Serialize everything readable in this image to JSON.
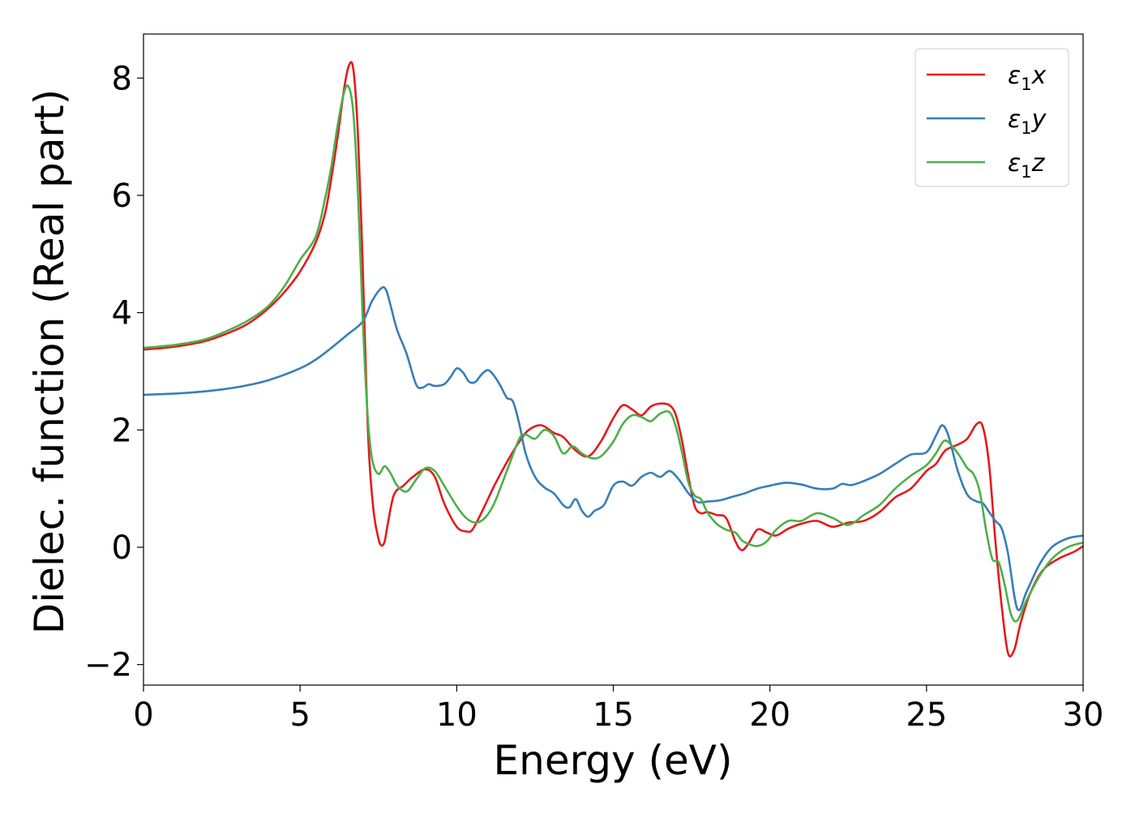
{
  "chart_data": {
    "type": "line",
    "title": "",
    "xlabel": "Energy (eV)",
    "ylabel": "Dielec. function (Real part)",
    "xlim": [
      0,
      30
    ],
    "ylim": [
      -2.35,
      8.75
    ],
    "xticks": [
      0,
      5,
      10,
      15,
      20,
      25,
      30
    ],
    "yticks": [
      -2,
      0,
      2,
      4,
      6,
      8
    ],
    "xtick_labels": [
      "0",
      "5",
      "10",
      "15",
      "20",
      "25",
      "30"
    ],
    "ytick_labels": [
      "−2",
      "0",
      "2",
      "4",
      "6",
      "8"
    ],
    "grid": false,
    "legend_position": "top-right",
    "series": [
      {
        "name": "ε₁x",
        "legend_main": "ε",
        "legend_sub": "1",
        "legend_tail": "x",
        "color": "#e41a1c",
        "x": [
          0,
          1,
          2,
          3,
          3.5,
          4,
          4.5,
          5,
          5.5,
          5.8,
          6.0,
          6.2,
          6.4,
          6.55,
          6.7,
          6.85,
          7.0,
          7.1,
          7.2,
          7.35,
          7.5,
          7.6,
          7.7,
          7.8,
          8.0,
          8.3,
          8.6,
          9.0,
          9.3,
          9.6,
          10.0,
          10.3,
          10.5,
          10.8,
          11.2,
          11.6,
          12.0,
          12.3,
          12.7,
          13.1,
          13.4,
          13.8,
          14.2,
          14.6,
          15.0,
          15.3,
          15.6,
          15.9,
          16.2,
          16.5,
          16.8,
          17.0,
          17.2,
          17.4,
          17.6,
          17.8,
          18.0,
          18.3,
          18.6,
          18.9,
          19.1,
          19.3,
          19.6,
          19.9,
          20.2,
          20.6,
          21.0,
          21.5,
          22.0,
          22.5,
          23.0,
          23.5,
          24.0,
          24.5,
          25.0,
          25.3,
          25.6,
          26.0,
          26.3,
          26.6,
          26.8,
          27.0,
          27.2,
          27.4,
          27.6,
          27.8,
          28.0,
          28.3,
          28.7,
          29.2,
          29.7,
          30.0
        ],
        "y": [
          3.37,
          3.42,
          3.52,
          3.72,
          3.87,
          4.08,
          4.35,
          4.7,
          5.2,
          5.7,
          6.3,
          7.0,
          7.8,
          8.2,
          8.15,
          7.0,
          4.8,
          3.0,
          1.6,
          0.6,
          0.15,
          0.03,
          0.1,
          0.4,
          0.9,
          1.05,
          1.2,
          1.33,
          1.2,
          0.75,
          0.35,
          0.27,
          0.3,
          0.6,
          1.05,
          1.45,
          1.8,
          2.0,
          2.08,
          1.95,
          1.88,
          1.65,
          1.55,
          1.8,
          2.2,
          2.42,
          2.35,
          2.25,
          2.4,
          2.45,
          2.42,
          2.25,
          1.8,
          1.2,
          0.7,
          0.58,
          0.6,
          0.55,
          0.5,
          0.1,
          -0.05,
          0.05,
          0.3,
          0.25,
          0.2,
          0.32,
          0.4,
          0.45,
          0.35,
          0.42,
          0.45,
          0.6,
          0.85,
          1.0,
          1.3,
          1.42,
          1.65,
          1.75,
          1.85,
          2.1,
          2.05,
          1.4,
          0.1,
          -1.0,
          -1.8,
          -1.75,
          -1.3,
          -0.8,
          -0.4,
          -0.2,
          -0.08,
          0.02
        ]
      },
      {
        "name": "ε₁y",
        "legend_main": "ε",
        "legend_sub": "1",
        "legend_tail": "y",
        "color": "#377eb8",
        "x": [
          0,
          1,
          2,
          3,
          4,
          5,
          5.5,
          6.0,
          6.5,
          7.0,
          7.3,
          7.6,
          7.75,
          7.9,
          8.1,
          8.4,
          8.7,
          8.9,
          9.1,
          9.3,
          9.6,
          9.8,
          10.0,
          10.2,
          10.4,
          10.6,
          10.8,
          11.0,
          11.2,
          11.4,
          11.6,
          11.8,
          12.0,
          12.2,
          12.5,
          12.8,
          13.1,
          13.4,
          13.6,
          13.8,
          14.0,
          14.2,
          14.4,
          14.7,
          15.0,
          15.3,
          15.6,
          15.9,
          16.2,
          16.5,
          16.8,
          17.1,
          17.4,
          17.7,
          18.0,
          18.4,
          18.8,
          19.2,
          19.6,
          20.0,
          20.5,
          21.0,
          21.5,
          22.0,
          22.3,
          22.6,
          23.0,
          23.5,
          24.0,
          24.5,
          25.0,
          25.3,
          25.5,
          25.7,
          26.0,
          26.3,
          26.6,
          26.8,
          27.0,
          27.2,
          27.4,
          27.6,
          27.9,
          28.2,
          28.6,
          29.0,
          29.5,
          30.0
        ],
        "y": [
          2.6,
          2.62,
          2.66,
          2.73,
          2.85,
          3.05,
          3.2,
          3.4,
          3.62,
          3.85,
          4.2,
          4.42,
          4.38,
          4.1,
          3.7,
          3.3,
          2.78,
          2.72,
          2.78,
          2.75,
          2.78,
          2.9,
          3.05,
          2.98,
          2.82,
          2.82,
          2.95,
          3.02,
          2.92,
          2.75,
          2.55,
          2.48,
          2.1,
          1.6,
          1.2,
          1.02,
          0.92,
          0.72,
          0.68,
          0.82,
          0.62,
          0.52,
          0.62,
          0.72,
          1.05,
          1.12,
          1.05,
          1.2,
          1.27,
          1.2,
          1.3,
          1.15,
          0.92,
          0.77,
          0.78,
          0.8,
          0.86,
          0.92,
          1.0,
          1.05,
          1.1,
          1.07,
          1.0,
          1.0,
          1.08,
          1.06,
          1.13,
          1.25,
          1.42,
          1.58,
          1.62,
          1.9,
          2.08,
          1.9,
          1.3,
          0.9,
          0.78,
          0.75,
          0.6,
          0.45,
          0.32,
          -0.1,
          -1.05,
          -0.75,
          -0.3,
          0.0,
          0.15,
          0.2
        ]
      },
      {
        "name": "ε₁z",
        "legend_main": "ε",
        "legend_sub": "1",
        "legend_tail": "z",
        "color": "#4daf4a",
        "x": [
          0,
          1,
          2,
          3,
          3.5,
          4,
          4.5,
          5,
          5.5,
          5.8,
          6.0,
          6.2,
          6.4,
          6.55,
          6.7,
          6.85,
          7.0,
          7.15,
          7.3,
          7.5,
          7.7,
          7.9,
          8.1,
          8.4,
          8.7,
          9.0,
          9.3,
          9.6,
          10.0,
          10.3,
          10.6,
          10.9,
          11.2,
          11.6,
          12.0,
          12.2,
          12.5,
          12.8,
          13.1,
          13.4,
          13.7,
          14.0,
          14.3,
          14.6,
          15.0,
          15.3,
          15.6,
          15.9,
          16.2,
          16.5,
          16.8,
          17.0,
          17.2,
          17.4,
          17.6,
          17.8,
          18.0,
          18.3,
          18.6,
          18.9,
          19.1,
          19.3,
          19.6,
          19.9,
          20.2,
          20.6,
          21.0,
          21.5,
          22.0,
          22.5,
          23.0,
          23.5,
          24.0,
          24.5,
          25.0,
          25.3,
          25.6,
          26.0,
          26.3,
          26.5,
          26.7,
          26.9,
          27.1,
          27.3,
          27.5,
          27.7,
          27.9,
          28.2,
          28.6,
          29.0,
          29.5,
          30.0
        ],
        "y": [
          3.4,
          3.45,
          3.55,
          3.77,
          3.92,
          4.12,
          4.45,
          4.9,
          5.3,
          5.95,
          6.5,
          7.2,
          7.75,
          7.85,
          7.4,
          6.0,
          3.9,
          2.3,
          1.5,
          1.25,
          1.38,
          1.25,
          1.05,
          0.95,
          1.15,
          1.35,
          1.3,
          1.05,
          0.7,
          0.5,
          0.42,
          0.5,
          0.75,
          1.3,
          1.85,
          1.92,
          1.85,
          2.0,
          1.9,
          1.6,
          1.72,
          1.6,
          1.52,
          1.55,
          1.8,
          2.1,
          2.25,
          2.22,
          2.15,
          2.28,
          2.3,
          2.05,
          1.6,
          1.1,
          0.88,
          0.82,
          0.6,
          0.4,
          0.3,
          0.25,
          0.12,
          0.06,
          0.02,
          0.1,
          0.3,
          0.45,
          0.45,
          0.58,
          0.5,
          0.38,
          0.55,
          0.72,
          1.0,
          1.22,
          1.4,
          1.6,
          1.82,
          1.6,
          1.35,
          1.25,
          0.95,
          0.3,
          -0.2,
          -0.25,
          -0.65,
          -1.15,
          -1.25,
          -0.9,
          -0.5,
          -0.2,
          0.0,
          0.08
        ]
      }
    ]
  }
}
